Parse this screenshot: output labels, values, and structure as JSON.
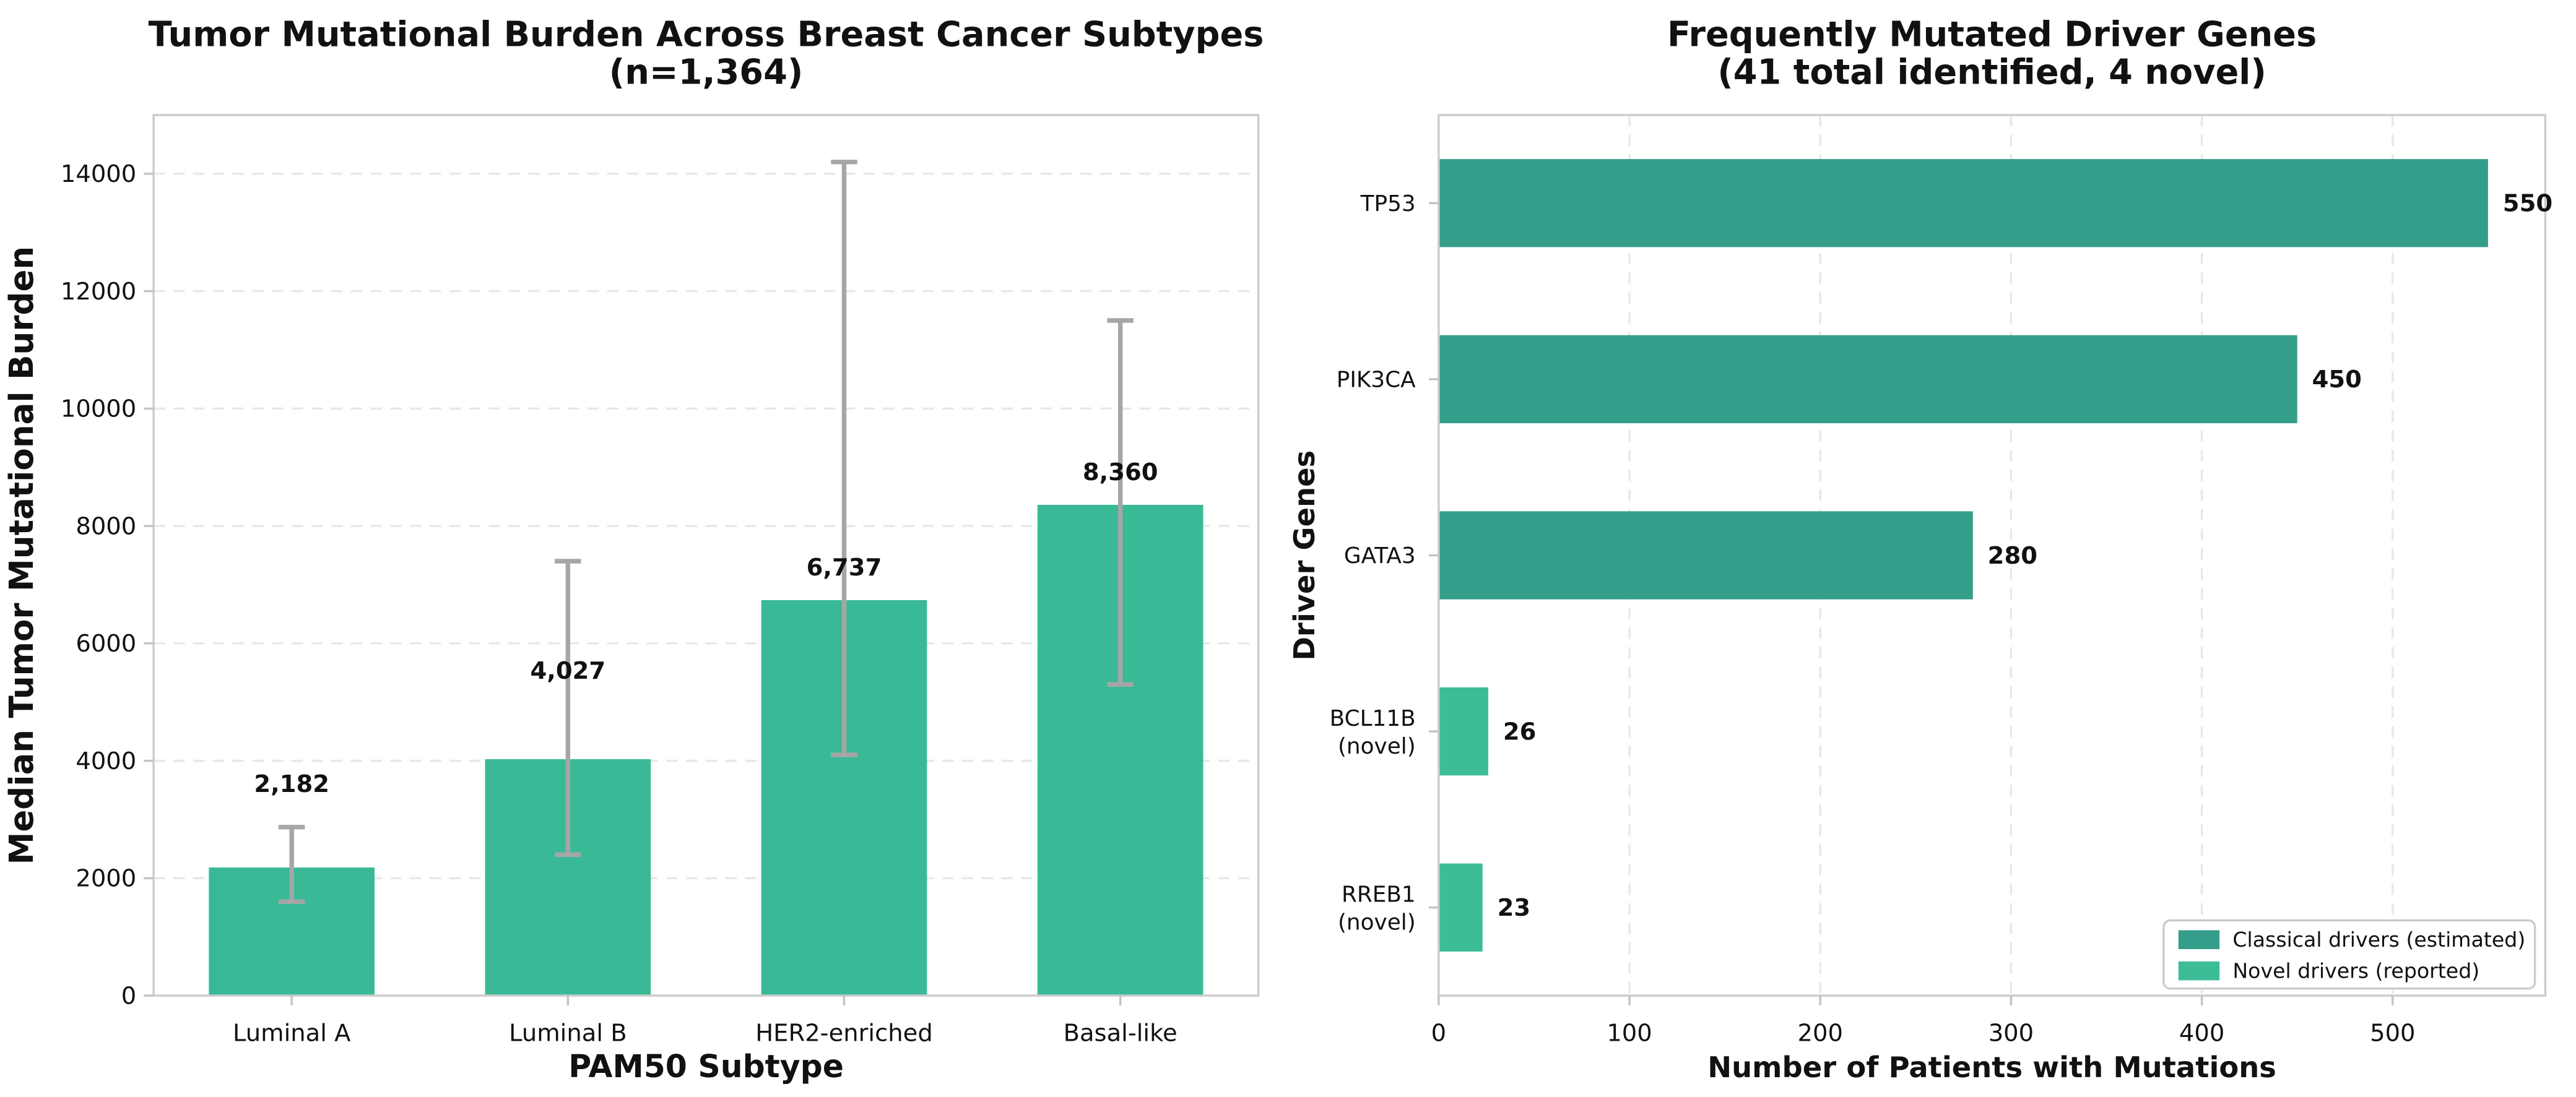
{
  "figure": {
    "background": "#ffffff",
    "grid_color": "#e8e8e8",
    "spine_color": "#cccccc",
    "tick_color": "#c4c4c4",
    "text_color": "#111111"
  },
  "chart_data": [
    {
      "type": "bar",
      "title": "Tumor Mutational Burden Across Breast Cancer Subtypes",
      "subtitle": "(n=1,364)",
      "xlabel": "PAM50 Subtype",
      "ylabel": "Median Tumor Mutational Burden",
      "categories": [
        "Luminal A",
        "Luminal B",
        "HER2-enriched",
        "Basal-like"
      ],
      "values": [
        2182,
        4027,
        6737,
        8360
      ],
      "value_labels": [
        "2,182",
        "4,027",
        "6,737",
        "8,360"
      ],
      "error_low": [
        1600,
        2400,
        4100,
        5300
      ],
      "error_high": [
        2870,
        7400,
        14200,
        11500
      ],
      "ylim": [
        0,
        15000
      ],
      "yticks": [
        0,
        2000,
        4000,
        6000,
        8000,
        10000,
        12000,
        14000
      ],
      "bar_color": "#3ab996",
      "error_color": "#a6a6a6",
      "grid": "horizontal-dashed"
    },
    {
      "type": "bar-horizontal",
      "title": "Frequently Mutated Driver Genes",
      "subtitle": "(41 total identified, 4 novel)",
      "xlabel": "Number of Patients with Mutations",
      "ylabel": "Driver Genes",
      "categories": [
        "TP53",
        "PIK3CA",
        "GATA3",
        "BCL11B (novel)",
        "RREB1 (novel)"
      ],
      "category_lines": [
        [
          "TP53"
        ],
        [
          "PIK3CA"
        ],
        [
          "GATA3"
        ],
        [
          "BCL11B",
          "(novel)"
        ],
        [
          "RREB1",
          "(novel)"
        ]
      ],
      "values": [
        550,
        450,
        280,
        26,
        23
      ],
      "value_labels": [
        "550",
        "450",
        "280",
        "26",
        "23"
      ],
      "bar_classes": [
        "classical",
        "classical",
        "classical",
        "novel",
        "novel"
      ],
      "colors": {
        "classical": "#349e8b",
        "novel": "#3cbd98"
      },
      "xlim": [
        0,
        580
      ],
      "xticks": [
        0,
        100,
        200,
        300,
        400,
        500
      ],
      "grid": "vertical-dashed",
      "legend": {
        "position": "lower-right",
        "entries": [
          {
            "label": "Classical drivers (estimated)",
            "color": "#349e8b"
          },
          {
            "label": "Novel drivers (reported)",
            "color": "#3cbd98"
          }
        ]
      }
    }
  ]
}
